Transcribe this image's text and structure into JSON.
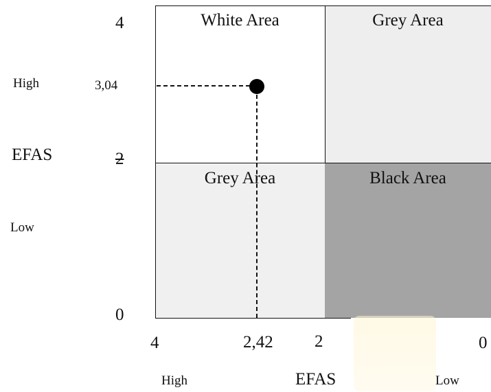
{
  "quadrants": {
    "top_left": "White Area",
    "top_right": "Grey Area",
    "bottom_left": "Grey Area",
    "bottom_right": "Black Area"
  },
  "y_axis": {
    "title": "EFAS",
    "high_label": "High",
    "low_label": "Low",
    "ticks": {
      "top": "4",
      "mid": "2",
      "bottom": "0"
    },
    "point_value_label": "3,04"
  },
  "x_axis": {
    "title": "EFAS",
    "high_label": "High",
    "low_label": "Low",
    "ticks": {
      "left": "4",
      "mid": "2",
      "right": "0"
    },
    "point_value_label": "2,42"
  },
  "point": {
    "x": 2.42,
    "y": 3.04
  },
  "colors": {
    "white_area": "#ffffff",
    "grey_area": "#eeeeee",
    "black_area": "#a4a4a4",
    "lines": "#111111"
  }
}
